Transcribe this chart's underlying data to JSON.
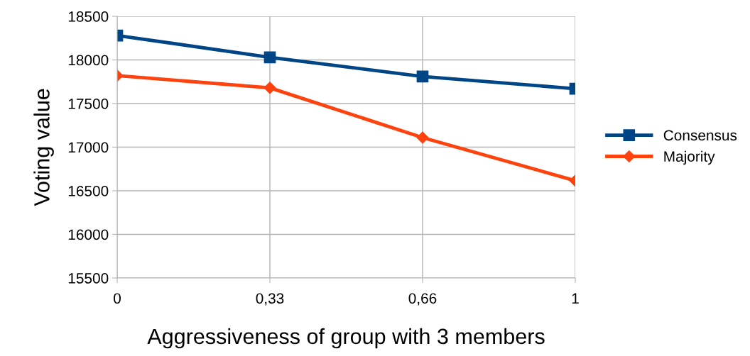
{
  "chart_data": {
    "type": "line",
    "xlabel": "Aggressiveness of group with 3 members",
    "ylabel": "Voting value",
    "categories": [
      "0",
      "0,33",
      "0,66",
      "1"
    ],
    "series": [
      {
        "name": "Consensus",
        "color": "#004586",
        "marker": "square",
        "values": [
          18280,
          18030,
          17810,
          17670
        ]
      },
      {
        "name": "Majority",
        "color": "#ff420e",
        "marker": "diamond",
        "values": [
          17820,
          17680,
          17110,
          16615
        ]
      }
    ],
    "ylim": [
      15500,
      18500
    ],
    "yticks": [
      15500,
      16000,
      16500,
      17000,
      17500,
      18000,
      18500
    ],
    "grid": true,
    "legend": "right",
    "line_style": "solid"
  }
}
